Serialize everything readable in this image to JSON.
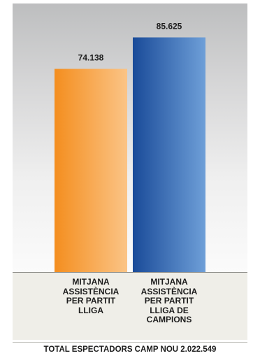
{
  "chart_data": {
    "type": "bar",
    "categories": [
      "MITJANA ASSISTÈNCIA PER PARTIT LLIGA",
      "MITJANA ASSISTÈNCIA PER PARTIT LLIGA DE CAMPIONS"
    ],
    "category_lines": [
      [
        "MITJANA",
        "ASSISTÈNCIA",
        "PER PARTIT",
        "LLIGA"
      ],
      [
        "MITJANA",
        "ASSISTÈNCIA",
        "PER PARTIT",
        "LLIGA DE",
        "CAMPIONS"
      ]
    ],
    "values": [
      74138,
      85625
    ],
    "value_labels": [
      "74.138",
      "85.625"
    ],
    "colors": [
      "#f79a2b",
      "#1f56a6"
    ],
    "ylim": [
      0,
      98000
    ],
    "grid": false,
    "legend": "none",
    "title": "",
    "xlabel": "",
    "ylabel": ""
  },
  "footer": {
    "total_label": "TOTAL ESPECTADORS CAMP NOU 2.022.549"
  }
}
